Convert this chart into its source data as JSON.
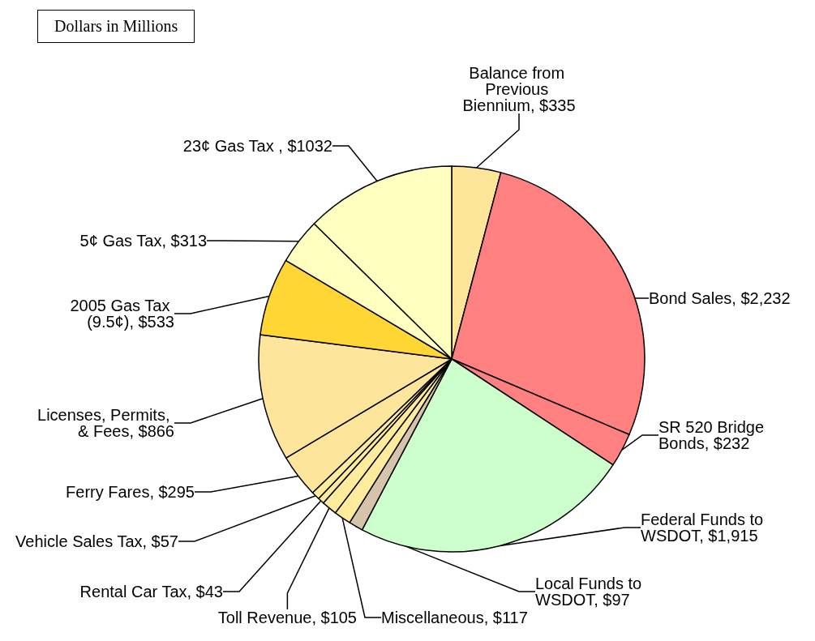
{
  "chart_data": {
    "type": "pie",
    "annotations": [
      "Dollars in Millions"
    ],
    "categories": [
      "Balance from Previous Biennium",
      "Bond Sales",
      "SR 520 Bridge Bonds",
      "Federal Funds to WSDOT",
      "Local Funds to WSDOT",
      "Miscellaneous",
      "Toll Revenue",
      "Rental Car Tax",
      "Vehicle Sales Tax",
      "Ferry Fares",
      "Licenses, Permits, & Fees",
      "2005 Gas Tax (9.5¢)",
      "5¢ Gas Tax",
      "23¢ Gas Tax "
    ],
    "values": [
      335,
      2232,
      232,
      1915,
      97,
      117,
      105,
      43,
      57,
      295,
      866,
      533,
      313,
      1032
    ],
    "value_labels": [
      "$335",
      "$2,232",
      "$232",
      "$1,915",
      "$97",
      "$117",
      "$105",
      "$43",
      "$57",
      "$295",
      "$866",
      "$533",
      "$313",
      "$1032"
    ],
    "colors": [
      "#fde59a",
      "#ff8080",
      "#ff8080",
      "#ccffcc",
      "#d6c3ab",
      "#ffeb9c",
      "#ffeb9c",
      "#ffeb9c",
      "#ffeb9c",
      "#fde69b",
      "#fde69b",
      "#ffd633",
      "#ffffc0",
      "#ffffc0"
    ],
    "data_labels": true,
    "legend": false
  }
}
